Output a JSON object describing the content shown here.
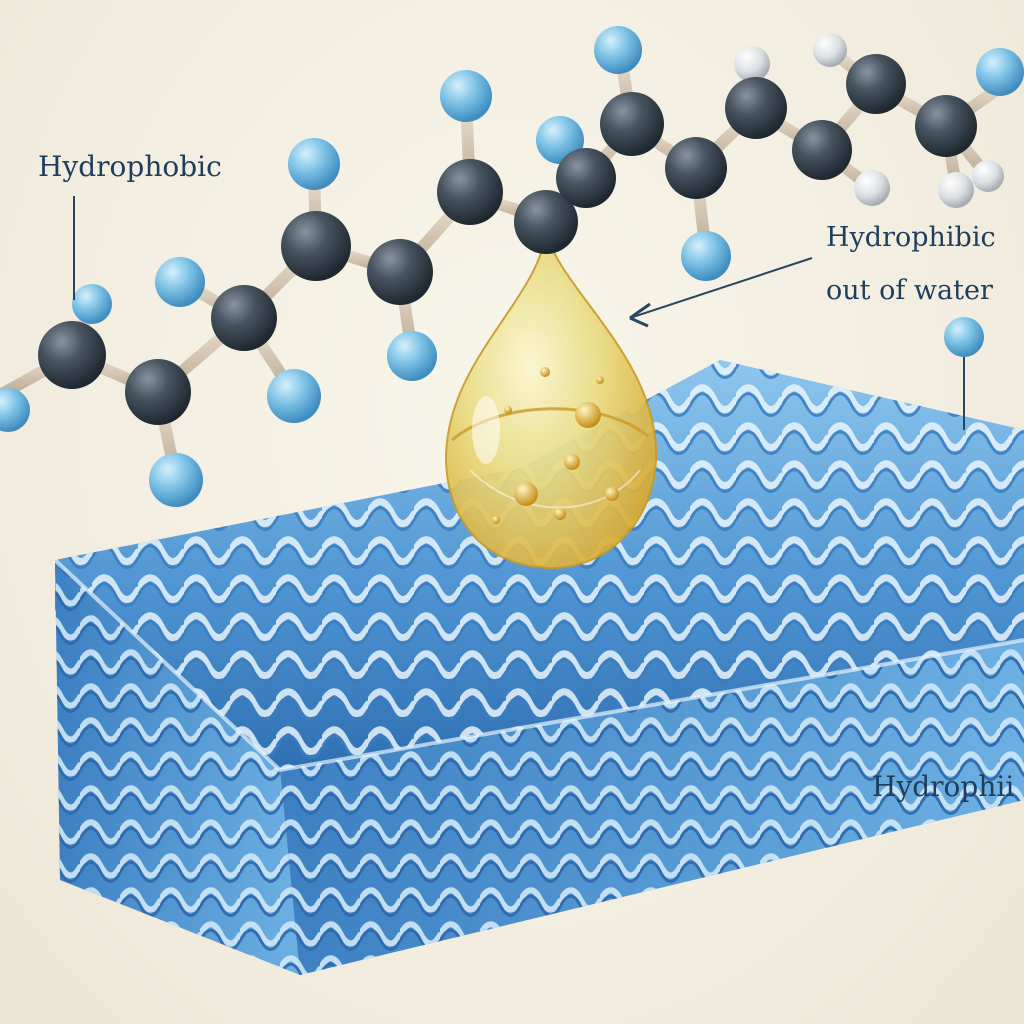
{
  "labels": {
    "hydrophobic": "Hydrophobic",
    "hydrophibic_line1": "Hydrophibic",
    "hydrophibic_line2": "out of water",
    "hydrophii": "Hydrophii"
  },
  "colors": {
    "background": "#f1ecde",
    "carbon_atom": "#3e4b58",
    "hydrogen_atom": "#6fb6dc",
    "bond": "#d7c9b5",
    "membrane": "#5a9fd6",
    "droplet": "#f2d35a",
    "label_text": "#1f3d5c"
  }
}
